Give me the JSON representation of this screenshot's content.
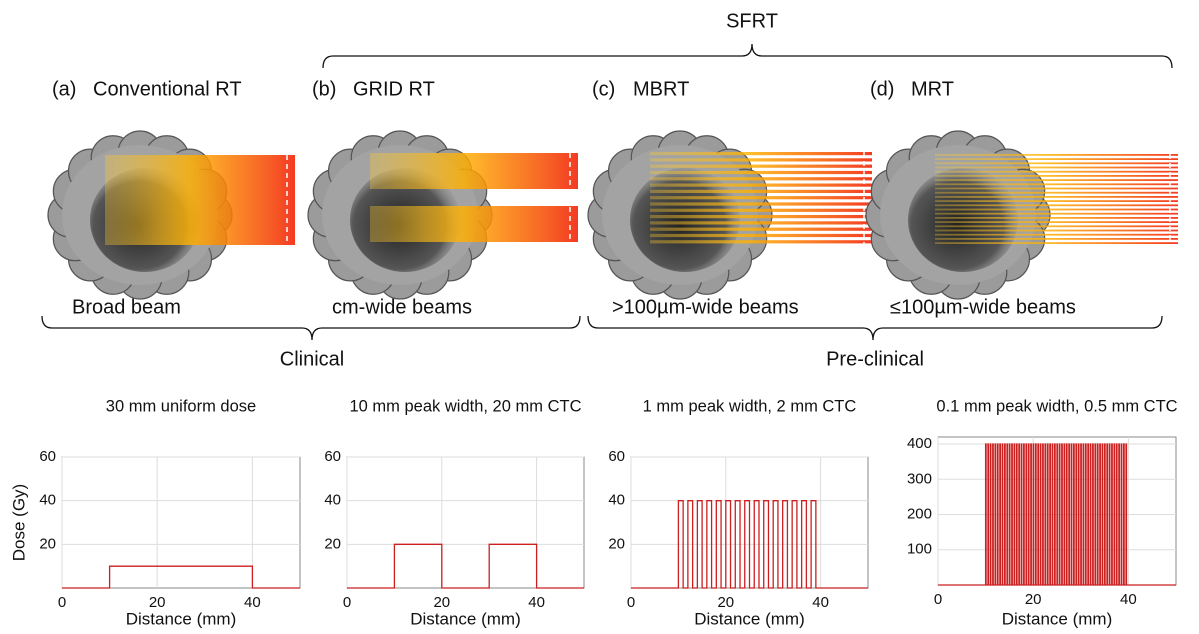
{
  "diagram": {
    "top_label": "SFRT",
    "panels": [
      {
        "label": "(a)",
        "name": "Conventional RT",
        "beam": "Broad beam"
      },
      {
        "label": "(b)",
        "name": "GRID RT",
        "beam": "cm-wide beams"
      },
      {
        "label": "(c)",
        "name": "MBRT",
        "beam": ">100µm-wide beams"
      },
      {
        "label": "(d)",
        "name": "MRT",
        "beam": "≤100µm-wide beams"
      }
    ],
    "groups": [
      "Clinical",
      "Pre-clinical"
    ]
  },
  "chart_data": [
    {
      "type": "line",
      "title": "30 mm uniform dose",
      "xlabel": "Distance (mm)",
      "ylabel": "Dose (Gy)",
      "color": "#cc1f1f",
      "grid": true,
      "xlim": [
        0,
        50
      ],
      "xticks": [
        0,
        20,
        40
      ],
      "ylim": [
        0,
        60
      ],
      "yticks": [
        20,
        40,
        60
      ],
      "x": [
        0,
        10,
        10,
        40,
        40,
        50
      ],
      "values": [
        0,
        0,
        10,
        10,
        0,
        0
      ]
    },
    {
      "type": "line",
      "title": "10 mm peak width, 20 mm CTC",
      "xlabel": "Distance (mm)",
      "color": "#cc1f1f",
      "grid": true,
      "xlim": [
        0,
        50
      ],
      "xticks": [
        0,
        20,
        40
      ],
      "ylim": [
        0,
        60
      ],
      "yticks": [
        20,
        40,
        60
      ],
      "x": [
        0,
        10,
        10,
        20,
        20,
        30,
        30,
        40,
        40,
        50
      ],
      "values": [
        0,
        0,
        20,
        20,
        0,
        0,
        20,
        20,
        0,
        0
      ]
    },
    {
      "type": "line",
      "title": "1 mm peak width, 2 mm CTC",
      "xlabel": "Distance (mm)",
      "color": "#cc1f1f",
      "grid": true,
      "xlim": [
        0,
        50
      ],
      "xticks": [
        0,
        20,
        40
      ],
      "ylim": [
        0,
        60
      ],
      "yticks": [
        20,
        40,
        60
      ],
      "x": [
        0,
        10,
        10,
        11,
        11,
        12,
        12,
        13,
        13,
        14,
        14,
        15,
        15,
        16,
        16,
        17,
        17,
        18,
        18,
        19,
        19,
        20,
        20,
        21,
        21,
        22,
        22,
        23,
        23,
        24,
        24,
        25,
        25,
        26,
        26,
        27,
        27,
        28,
        28,
        29,
        29,
        30,
        30,
        31,
        31,
        32,
        32,
        33,
        33,
        34,
        34,
        35,
        35,
        36,
        36,
        37,
        37,
        38,
        38,
        39,
        39,
        50
      ],
      "values": [
        0,
        0,
        40,
        40,
        0,
        0,
        40,
        40,
        0,
        0,
        40,
        40,
        0,
        0,
        40,
        40,
        0,
        0,
        40,
        40,
        0,
        0,
        40,
        40,
        0,
        0,
        40,
        40,
        0,
        0,
        40,
        40,
        0,
        0,
        40,
        40,
        0,
        0,
        40,
        40,
        0,
        0,
        40,
        40,
        0,
        0,
        40,
        40,
        0,
        0,
        40,
        40,
        0,
        0,
        40,
        40,
        0,
        0,
        40,
        40,
        0,
        0
      ]
    },
    {
      "type": "line",
      "title": "0.1 mm peak width, 0.5 mm CTC",
      "xlabel": "Distance (mm)",
      "color": "#cc1f1f",
      "grid": true,
      "xlim": [
        0,
        50
      ],
      "xticks": [
        0,
        20,
        40
      ],
      "ylim": [
        0,
        420
      ],
      "yticks": [
        100,
        200,
        300,
        400
      ],
      "x": [
        0,
        10,
        10,
        10.1,
        10.1,
        10.5,
        10.5,
        10.6,
        10.6,
        11,
        11,
        11.1,
        11.1,
        11.5,
        11.5,
        11.6,
        11.6,
        12,
        12,
        12.1,
        12.1,
        12.5,
        12.5,
        12.6,
        12.6,
        13,
        13,
        13.1,
        13.1,
        13.5,
        13.5,
        13.6,
        13.6,
        14,
        14,
        14.1,
        14.1,
        14.5,
        14.5,
        14.6,
        14.6,
        15,
        15,
        15.1,
        15.1,
        15.5,
        15.5,
        15.6,
        15.6,
        16,
        16,
        16.1,
        16.1,
        16.5,
        16.5,
        16.6,
        16.6,
        17,
        17,
        17.1,
        17.1,
        17.5,
        17.5,
        17.6,
        17.6,
        18,
        18,
        18.1,
        18.1,
        18.5,
        18.5,
        18.6,
        18.6,
        19,
        19,
        19.1,
        19.1,
        19.5,
        19.5,
        19.6,
        19.6,
        20,
        20,
        20.1,
        20.1,
        20.5,
        20.5,
        20.6,
        20.6,
        21,
        21,
        21.1,
        21.1,
        21.5,
        21.5,
        21.6,
        21.6,
        22,
        22,
        22.1,
        22.1,
        22.5,
        22.5,
        22.6,
        22.6,
        23,
        23,
        23.1,
        23.1,
        23.5,
        23.5,
        23.6,
        23.6,
        24,
        24,
        24.1,
        24.1,
        24.5,
        24.5,
        24.6,
        24.6,
        25,
        25,
        25.1,
        25.1,
        25.5,
        25.5,
        25.6,
        25.6,
        26,
        26,
        26.1,
        26.1,
        26.5,
        26.5,
        26.6,
        26.6,
        27,
        27,
        27.1,
        27.1,
        27.5,
        27.5,
        27.6,
        27.6,
        28,
        28,
        28.1,
        28.1,
        28.5,
        28.5,
        28.6,
        28.6,
        29,
        29,
        29.1,
        29.1,
        29.5,
        29.5,
        29.6,
        29.6,
        30,
        30,
        30.1,
        30.1,
        30.5,
        30.5,
        30.6,
        30.6,
        31,
        31,
        31.1,
        31.1,
        31.5,
        31.5,
        31.6,
        31.6,
        32,
        32,
        32.1,
        32.1,
        32.5,
        32.5,
        32.6,
        32.6,
        33,
        33,
        33.1,
        33.1,
        33.5,
        33.5,
        33.6,
        33.6,
        34,
        34,
        34.1,
        34.1,
        34.5,
        34.5,
        34.6,
        34.6,
        35,
        35,
        35.1,
        35.1,
        35.5,
        35.5,
        35.6,
        35.6,
        36,
        36,
        36.1,
        36.1,
        36.5,
        36.5,
        36.6,
        36.6,
        37,
        37,
        37.1,
        37.1,
        37.5,
        37.5,
        37.6,
        37.6,
        38,
        38,
        38.1,
        38.1,
        38.5,
        38.5,
        38.6,
        38.6,
        39,
        39,
        39.1,
        39.1,
        39.5,
        39.5,
        39.6,
        39.6,
        50
      ],
      "values": [
        0,
        0,
        400,
        400,
        0,
        0,
        400,
        400,
        0,
        0,
        400,
        400,
        0,
        0,
        400,
        400,
        0,
        0,
        400,
        400,
        0,
        0,
        400,
        400,
        0,
        0,
        400,
        400,
        0,
        0,
        400,
        400,
        0,
        0,
        400,
        400,
        0,
        0,
        400,
        400,
        0,
        0,
        400,
        400,
        0,
        0,
        400,
        400,
        0,
        0,
        400,
        400,
        0,
        0,
        400,
        400,
        0,
        0,
        400,
        400,
        0,
        0,
        400,
        400,
        0,
        0,
        400,
        400,
        0,
        0,
        400,
        400,
        0,
        0,
        400,
        400,
        0,
        0,
        400,
        400,
        0,
        0,
        400,
        400,
        0,
        0,
        400,
        400,
        0,
        0,
        400,
        400,
        0,
        0,
        400,
        400,
        0,
        0,
        400,
        400,
        0,
        0,
        400,
        400,
        0,
        0,
        400,
        400,
        0,
        0,
        400,
        400,
        0,
        0,
        400,
        400,
        0,
        0,
        400,
        400,
        0,
        0,
        400,
        400,
        0,
        0,
        400,
        400,
        0,
        0,
        400,
        400,
        0,
        0,
        400,
        400,
        0,
        0,
        400,
        400,
        0,
        0,
        400,
        400,
        0,
        0,
        400,
        400,
        0,
        0,
        400,
        400,
        0,
        0,
        400,
        400,
        0,
        0,
        400,
        400,
        0,
        0,
        400,
        400,
        0,
        0,
        400,
        400,
        0,
        0,
        400,
        400,
        0,
        0,
        400,
        400,
        0,
        0,
        400,
        400,
        0,
        0,
        400,
        400,
        0,
        0,
        400,
        400,
        0,
        0,
        400,
        400,
        0,
        0,
        400,
        400,
        0,
        0,
        400,
        400,
        0,
        0,
        400,
        400,
        0,
        0,
        400,
        400,
        0,
        0,
        400,
        400,
        0,
        0,
        400,
        400,
        0,
        0,
        400,
        400,
        0,
        0,
        400,
        400,
        0,
        0,
        400,
        400,
        0,
        0,
        400,
        400,
        0,
        0,
        400,
        400,
        0,
        0,
        400,
        400,
        0,
        0
      ]
    }
  ]
}
